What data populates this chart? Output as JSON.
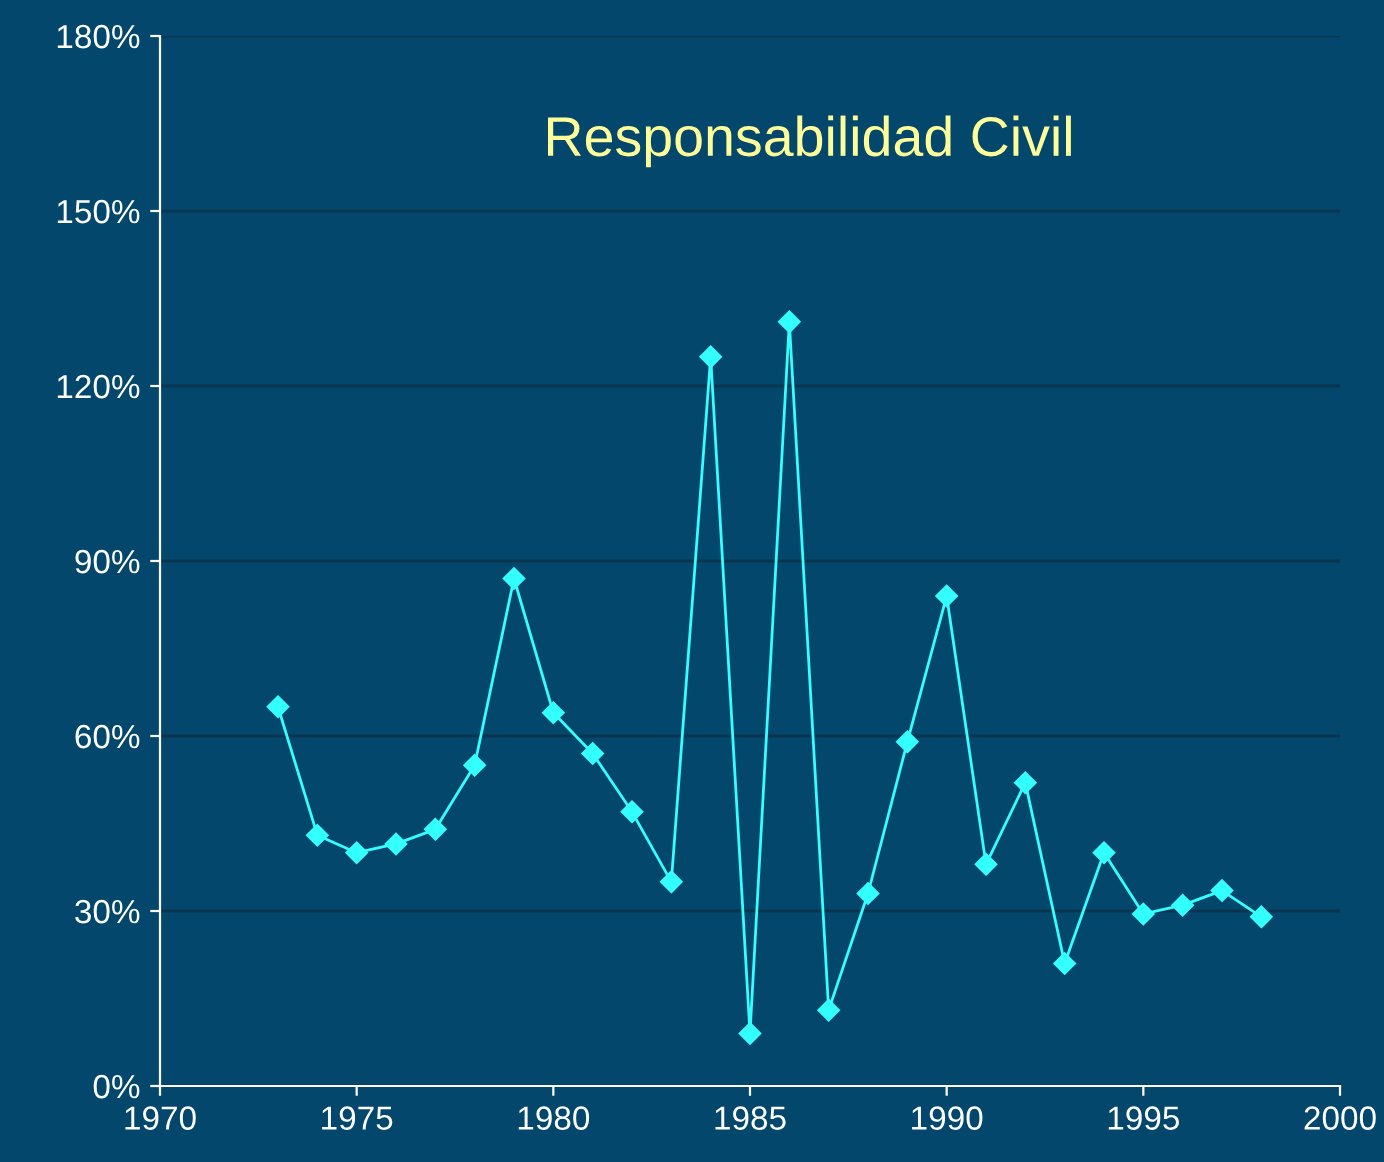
{
  "chart_data": {
    "type": "line",
    "title": "Responsabilidad Civil",
    "x": [
      1973,
      1974,
      1975,
      1976,
      1977,
      1978,
      1979,
      1980,
      1981,
      1982,
      1983,
      1984,
      1985,
      1986,
      1987,
      1988,
      1989,
      1990,
      1991,
      1992,
      1993,
      1994,
      1995,
      1996,
      1997,
      1998
    ],
    "series": [
      {
        "color": "#33ffff",
        "values": [
          65,
          43,
          40,
          41.5,
          44,
          55,
          87,
          64,
          57,
          47,
          35,
          125,
          9,
          131,
          13,
          33,
          59,
          84,
          38,
          52,
          21,
          40,
          29.5,
          31,
          33.5,
          29
        ]
      }
    ],
    "xlim": [
      1970,
      2000
    ],
    "xticks": [
      1970,
      1975,
      1980,
      1985,
      1990,
      1995,
      2000
    ],
    "ylim": [
      0,
      180
    ],
    "yticks": [
      {
        "value": 0,
        "label": "0%"
      },
      {
        "value": 30,
        "label": "30%"
      },
      {
        "value": 60,
        "label": "60%"
      },
      {
        "value": 90,
        "label": "90%"
      },
      {
        "value": 120,
        "label": "120%"
      },
      {
        "value": 150,
        "label": "150%"
      },
      {
        "value": 180,
        "label": "180%"
      }
    ],
    "grid": "y",
    "marker": "diamond",
    "line_style": "solid",
    "legend": false
  }
}
